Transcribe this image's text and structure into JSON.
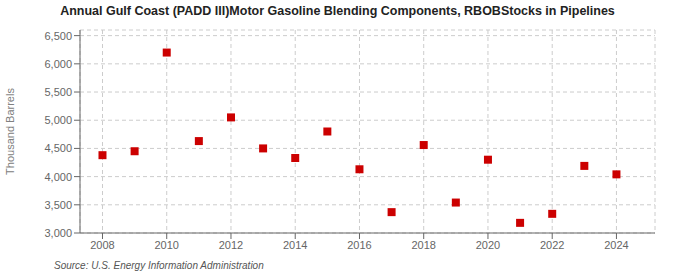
{
  "chart_data": {
    "type": "scatter",
    "title": "Annual Gulf Coast (PADD III)Motor Gasoline Blending Components, RBOBStocks in Pipelines",
    "ylabel": "Thousand Barrels",
    "annotation": "Source: U.S. Energy Information Administration",
    "x": [
      2008,
      2009,
      2010,
      2011,
      2012,
      2013,
      2014,
      2015,
      2016,
      2017,
      2018,
      2019,
      2020,
      2021,
      2022,
      2023,
      2024
    ],
    "values": [
      4380,
      4450,
      6200,
      4630,
      5050,
      4500,
      4330,
      4800,
      4130,
      3370,
      4560,
      3540,
      4300,
      3180,
      3340,
      4190,
      4040
    ],
    "color": "#cc0000",
    "marker": "square",
    "grid": true,
    "xlim": [
      2007.3,
      2025.2
    ],
    "xticks": [
      2008,
      2010,
      2012,
      2014,
      2016,
      2018,
      2020,
      2022,
      2024
    ],
    "ylim": [
      3000,
      6600
    ],
    "yticks": [
      {
        "value": 3000,
        "label": "3,000"
      },
      {
        "value": 3500,
        "label": "3,500"
      },
      {
        "value": 4000,
        "label": "4,000"
      },
      {
        "value": 4500,
        "label": "4,500"
      },
      {
        "value": 5000,
        "label": "5,000"
      },
      {
        "value": 5500,
        "label": "5,500"
      },
      {
        "value": 6000,
        "label": "6,000"
      },
      {
        "value": 6500,
        "label": "6,500"
      }
    ]
  }
}
